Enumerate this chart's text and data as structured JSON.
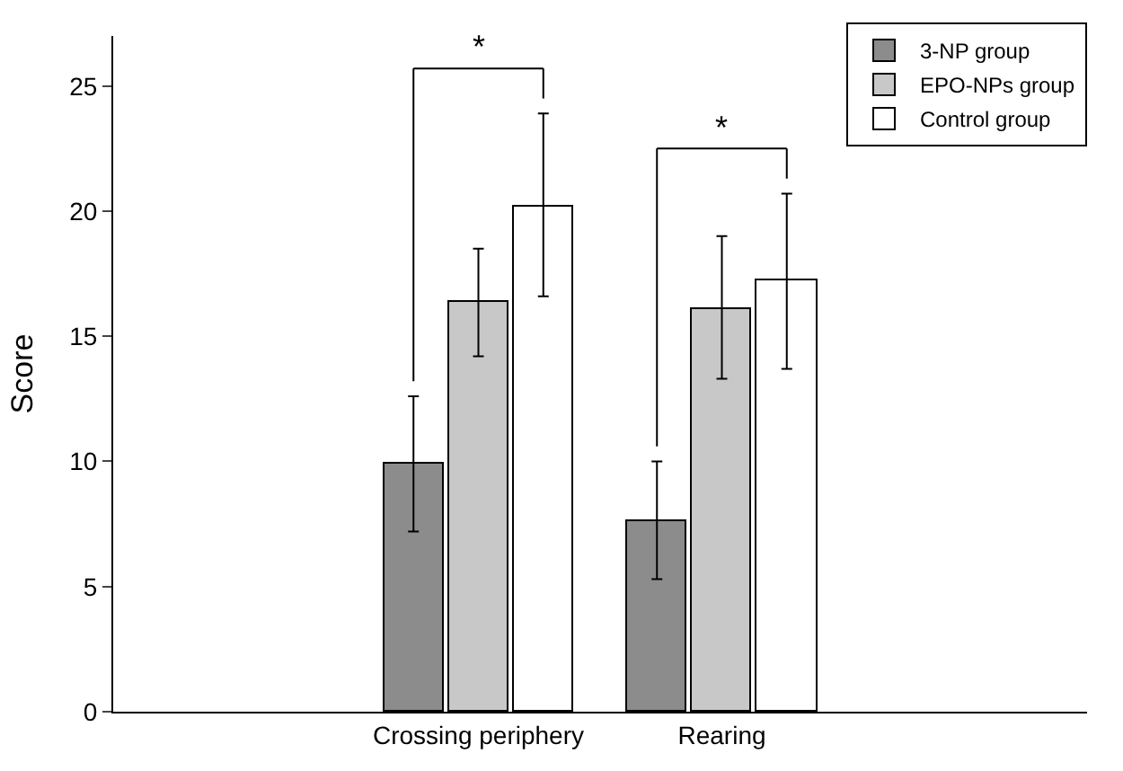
{
  "chart_data": {
    "type": "bar",
    "ylabel": "Score",
    "categories": [
      null,
      "Crossing periphery",
      "Rearing",
      null
    ],
    "series": [
      {
        "name": "3-NP group",
        "color": "#8c8c8c",
        "values": [
          null,
          9.9,
          7.6,
          null
        ],
        "errors": [
          null,
          [
            7.2,
            12.6
          ],
          [
            5.3,
            10.0
          ],
          null
        ]
      },
      {
        "name": "EPO-NPs group",
        "color": "#c8c8c8",
        "values": [
          null,
          16.4,
          16.1,
          null
        ],
        "errors": [
          null,
          [
            14.2,
            18.5
          ],
          [
            13.3,
            19.0
          ],
          null
        ]
      },
      {
        "name": "Control group",
        "color": "#ffffff",
        "values": [
          null,
          20.2,
          17.2,
          null
        ],
        "errors": [
          null,
          [
            16.6,
            23.9
          ],
          [
            13.7,
            20.7
          ],
          null
        ]
      }
    ],
    "ylim": [
      0,
      27
    ],
    "yticks": [
      0,
      5,
      10,
      15,
      20,
      25
    ],
    "annotations": [
      "*",
      "*"
    ],
    "legend": "top right"
  }
}
